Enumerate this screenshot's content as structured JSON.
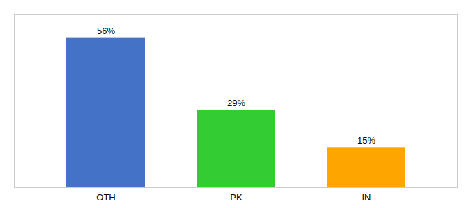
{
  "chart_data": {
    "type": "bar",
    "categories": [
      "OTH",
      "PK",
      "IN"
    ],
    "values": [
      56,
      29,
      15
    ],
    "value_labels": [
      "56%",
      "29%",
      "15%"
    ],
    "colors": [
      "#4472C4",
      "#33CC33",
      "#FFA500"
    ],
    "ylim": [
      0,
      65
    ],
    "data_labels": true,
    "tick_labels": "x",
    "grid": false
  }
}
